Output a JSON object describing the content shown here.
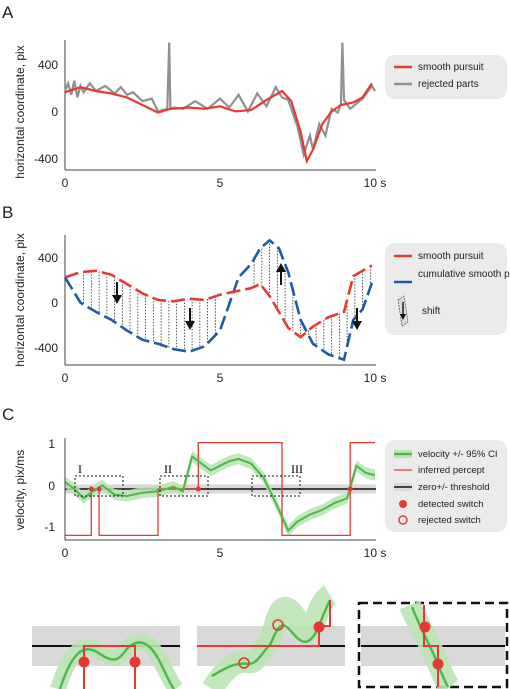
{
  "panels": [
    {
      "letter": "A",
      "type": "line",
      "ylabel": "horizontal coordinate, pix",
      "x_ticks": [
        "0",
        "5",
        "10 s"
      ],
      "y_ticks": [
        "400",
        "0",
        "-400"
      ],
      "xlim": [
        0,
        10
      ],
      "ylim": [
        -420,
        600
      ],
      "legend": [
        "smooth pursuit",
        "rejected parts"
      ],
      "series": [
        {
          "name": "smooth pursuit",
          "color": "#e53935",
          "x": [
            0.0,
            0.5,
            1.0,
            1.5,
            2.0,
            2.5,
            3.0,
            3.4,
            3.5,
            4.0,
            4.5,
            5.0,
            5.5,
            6.0,
            6.5,
            7.0,
            7.3,
            7.6,
            7.8,
            8.0,
            8.3,
            8.6,
            8.9,
            9.3,
            9.6,
            9.9
          ],
          "y": [
            190,
            230,
            200,
            180,
            150,
            90,
            30,
            60,
            60,
            70,
            60,
            80,
            40,
            50,
            130,
            200,
            120,
            -120,
            -350,
            -260,
            -60,
            40,
            90,
            110,
            150,
            260
          ]
        },
        {
          "name": "rejected parts",
          "color": "#909090",
          "x": [
            0.0,
            0.1,
            0.2,
            0.3,
            0.4,
            0.5,
            0.6,
            0.8,
            1.0,
            1.3,
            1.6,
            1.8,
            2.0,
            2.2,
            2.5,
            2.8,
            3.0,
            3.3,
            3.36,
            3.4,
            3.5,
            3.8,
            4.2,
            4.6,
            5.0,
            5.3,
            5.6,
            5.9,
            6.2,
            6.5,
            6.8,
            7.0,
            7.2,
            7.5,
            7.7,
            7.9,
            8.0,
            8.2,
            8.4,
            8.6,
            8.8,
            8.9,
            8.95,
            9.0,
            9.2,
            9.6,
            9.9,
            10.0
          ],
          "y": [
            200,
            260,
            170,
            280,
            150,
            240,
            190,
            260,
            200,
            240,
            180,
            230,
            170,
            190,
            120,
            140,
            40,
            60,
            580,
            60,
            70,
            60,
            120,
            60,
            140,
            70,
            170,
            40,
            180,
            80,
            230,
            150,
            130,
            -80,
            -300,
            -150,
            -260,
            -60,
            -150,
            60,
            30,
            100,
            580,
            130,
            60,
            140,
            240,
            200
          ]
        }
      ]
    },
    {
      "letter": "B",
      "type": "line",
      "ylabel": "horizontal coordinate, pix",
      "x_ticks": [
        "0",
        "5",
        "10 s"
      ],
      "y_ticks": [
        "400",
        "0",
        "-400"
      ],
      "xlim": [
        0,
        10
      ],
      "ylim": [
        -460,
        520
      ],
      "legend": [
        "smooth pursuit",
        "cumulative smooth pusuit",
        "shift"
      ],
      "series": [
        {
          "name": "smooth pursuit",
          "color": "#e53935",
          "x": [
            0.0,
            0.5,
            1.0,
            1.5,
            2.0,
            2.5,
            3.0,
            3.5,
            4.0,
            4.5,
            5.0,
            6.0,
            6.3,
            6.6,
            6.9,
            7.2,
            7.6,
            8.0,
            8.5,
            9.0,
            9.3,
            9.6,
            9.9
          ],
          "y": [
            200,
            240,
            250,
            220,
            150,
            80,
            30,
            20,
            40,
            30,
            70,
            120,
            150,
            60,
            -60,
            -180,
            -250,
            -170,
            -100,
            -60,
            210,
            250,
            290
          ]
        },
        {
          "name": "cumulative smooth pusuit",
          "color": "#1e5aa8",
          "x": [
            0.0,
            0.5,
            1.0,
            1.5,
            2.0,
            2.5,
            3.0,
            3.5,
            4.0,
            4.5,
            5.0,
            5.6,
            6.0,
            6.3,
            6.6,
            6.9,
            7.2,
            7.6,
            8.0,
            8.5,
            9.0,
            9.3,
            9.6,
            9.9
          ],
          "y": [
            200,
            10,
            -60,
            -120,
            -200,
            -270,
            -300,
            -340,
            -360,
            -320,
            -200,
            200,
            300,
            420,
            480,
            420,
            240,
            -120,
            -300,
            -380,
            -420,
            -120,
            -40,
            160
          ]
        }
      ]
    },
    {
      "letter": "C",
      "type": "line",
      "ylabel": "velocity, pix/ms",
      "x_ticks": [
        "0",
        "5",
        "10 s"
      ],
      "y_ticks": [
        "1",
        "0",
        "-1"
      ],
      "xlim": [
        0,
        10
      ],
      "ylim": [
        -1.1,
        1.1
      ],
      "legend": [
        "velocity +/- 95% CI",
        "inferred percept",
        "zero+/- threshold",
        "detected switch",
        "rejected switch"
      ],
      "box_labels": [
        "I",
        "II",
        "III"
      ],
      "velocity": {
        "x": [
          0.0,
          0.3,
          0.6,
          0.9,
          1.2,
          1.6,
          2.0,
          2.5,
          3.0,
          3.5,
          3.8,
          4.1,
          4.4,
          4.7,
          5.0,
          5.3,
          5.6,
          6.0,
          6.4,
          6.8,
          7.2,
          7.5,
          7.9,
          8.3,
          8.7,
          9.1,
          9.4,
          9.7,
          10.0
        ],
        "y": [
          0.15,
          0.0,
          -0.2,
          -0.05,
          0.08,
          -0.12,
          -0.15,
          -0.08,
          -0.05,
          0.05,
          -0.05,
          0.7,
          0.55,
          0.4,
          0.5,
          0.6,
          0.65,
          0.55,
          0.25,
          -0.3,
          -0.9,
          -0.7,
          -0.55,
          -0.45,
          -0.3,
          -0.2,
          0.5,
          0.35,
          0.3
        ]
      },
      "percept": {
        "x": [
          0.0,
          0.85,
          0.85,
          1.1,
          1.1,
          3.0,
          3.0,
          4.3,
          4.3,
          7.0,
          7.0,
          9.2,
          9.2,
          10.0
        ],
        "y": [
          -1,
          -1,
          0,
          0,
          -1,
          -1,
          0,
          0,
          1,
          1,
          -1,
          -1,
          1,
          1
        ]
      },
      "threshold": 0.1,
      "detected_switches": {
        "x": [
          0.85,
          1.1,
          4.3,
          9.2
        ],
        "y": [
          0,
          0,
          0,
          0
        ]
      },
      "rejected_switches": {
        "x": [],
        "y": []
      }
    }
  ],
  "zooms": [
    {
      "name": "I",
      "dashed": false
    },
    {
      "name": "II",
      "dashed": false
    },
    {
      "name": "III",
      "dashed": true
    }
  ],
  "colors": {
    "red": "#e53935",
    "gray": "#909090",
    "blue": "#1e5aa8",
    "green": "#4cb848",
    "green_band": "#b9e3b2",
    "threshold_band": "#d9d9d9",
    "legend_bg": "#ebebeb"
  }
}
